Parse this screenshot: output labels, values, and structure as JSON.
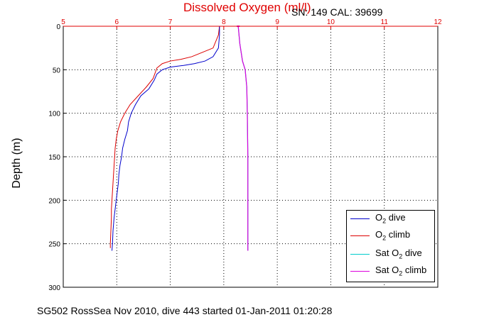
{
  "title": "Dissolved Oxygen (ml/l)",
  "subtitle": "SN: 149  CAL: 39699",
  "footer": "SG502 RossSea Nov 2010, dive 443 started 01-Jan-2011 01:20:28",
  "colors": {
    "title": "#e00000",
    "o2_dive": "#0000cc",
    "o2_climb": "#dd0000",
    "sat_dive": "#00cccc",
    "sat_climb": "#dd00dd"
  },
  "chart_data": {
    "type": "line",
    "title": "Dissolved Oxygen (ml/l)",
    "xlabel": "",
    "ylabel": "Depth (m)",
    "xlim": [
      5,
      12
    ],
    "ylim": [
      0,
      300
    ],
    "y_reversed": true,
    "x_axis_position": "top",
    "x_ticks": [
      5,
      6,
      7,
      8,
      9,
      10,
      11,
      12
    ],
    "y_ticks": [
      0,
      50,
      100,
      150,
      200,
      250,
      300
    ],
    "grid": true,
    "legend_position": "bottom-right",
    "series": [
      {
        "key": "o2_dive",
        "legend_main": "O",
        "legend_sub": "2",
        "legend_rest": " dive",
        "color": "#0000cc",
        "x": [
          7.92,
          7.92,
          7.9,
          7.8,
          7.65,
          7.45,
          7.25,
          7.0,
          6.85,
          6.75,
          6.7,
          6.6,
          6.45,
          6.35,
          6.27,
          6.22,
          6.2,
          6.15,
          6.11,
          6.09,
          6.06,
          6.04,
          6.03,
          6.01,
          5.99,
          5.97,
          5.95,
          5.93,
          5.92,
          5.91
        ],
        "y": [
          0,
          10,
          25,
          35,
          40,
          43,
          45,
          47,
          50,
          55,
          62,
          72,
          80,
          90,
          100,
          110,
          120,
          130,
          140,
          150,
          160,
          170,
          180,
          190,
          200,
          210,
          220,
          235,
          250,
          258
        ]
      },
      {
        "key": "o2_climb",
        "legend_main": "O",
        "legend_sub": "2",
        "legend_rest": " climb",
        "color": "#dd0000",
        "x": [
          7.92,
          7.9,
          7.8,
          7.6,
          7.4,
          7.2,
          7.0,
          6.85,
          6.75,
          6.68,
          6.55,
          6.4,
          6.25,
          6.15,
          6.07,
          6.02,
          5.99,
          5.97,
          5.96,
          5.95,
          5.94,
          5.93,
          5.92,
          5.91,
          5.9,
          5.9,
          5.89,
          5.88,
          5.88
        ],
        "y": [
          0,
          10,
          25,
          30,
          35,
          38,
          40,
          43,
          48,
          60,
          70,
          80,
          90,
          100,
          110,
          120,
          130,
          140,
          150,
          160,
          170,
          180,
          190,
          200,
          210,
          220,
          235,
          250,
          255
        ]
      },
      {
        "key": "sat_dive",
        "legend_main": "Sat O",
        "legend_sub": "2",
        "legend_rest": " dive",
        "color": "#00cccc",
        "x": [
          8.27,
          8.3,
          8.35,
          8.4,
          8.43,
          8.44,
          8.45,
          8.45,
          8.45
        ],
        "y": [
          0,
          20,
          40,
          50,
          70,
          100,
          150,
          200,
          258
        ]
      },
      {
        "key": "sat_climb",
        "legend_main": "Sat O",
        "legend_sub": "2",
        "legend_rest": " climb",
        "color": "#dd00dd",
        "x": [
          8.27,
          8.3,
          8.35,
          8.4,
          8.43,
          8.44,
          8.45,
          8.45,
          8.45
        ],
        "y": [
          0,
          20,
          40,
          50,
          70,
          100,
          150,
          200,
          258
        ]
      }
    ]
  }
}
